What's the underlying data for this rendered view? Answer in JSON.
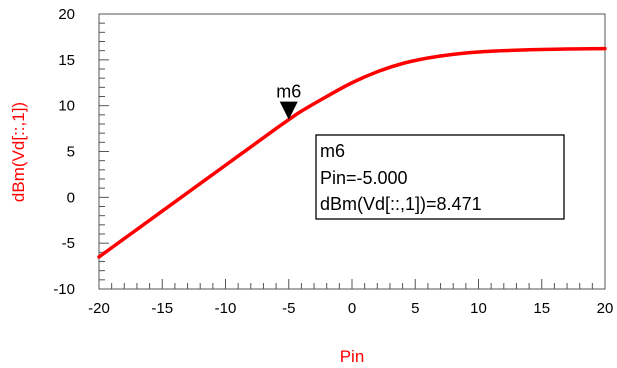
{
  "chart_data": {
    "type": "line",
    "xlabel": "Pin",
    "ylabel": "dBm(Vd[::,1])",
    "xlim": [
      -20,
      20
    ],
    "ylim": [
      -10,
      20
    ],
    "xticks": [
      -20,
      -15,
      -10,
      -5,
      0,
      5,
      10,
      15,
      20
    ],
    "yticks": [
      -10,
      -5,
      0,
      5,
      10,
      15,
      20
    ],
    "xtick_labels": [
      "-20",
      "-15",
      "-10",
      "-5",
      "0",
      "5",
      "10",
      "15",
      "20"
    ],
    "ytick_labels": [
      "-10",
      "-5",
      "0",
      "5",
      "10",
      "15",
      "20"
    ],
    "grid": false,
    "series": [
      {
        "color": "#ff0000",
        "x": [
          -20,
          -18,
          -16,
          -14,
          -12,
          -10,
          -8,
          -6,
          -5,
          -4,
          -2,
          0,
          2,
          4,
          6,
          8,
          10,
          12,
          14,
          16,
          18,
          20
        ],
        "y": [
          -6.5,
          -4.5,
          -2.5,
          -0.5,
          1.5,
          3.5,
          5.5,
          7.5,
          8.471,
          9.4,
          11.0,
          12.5,
          13.7,
          14.6,
          15.2,
          15.6,
          15.85,
          16.0,
          16.1,
          16.15,
          16.2,
          16.22
        ]
      }
    ],
    "marker": {
      "name": "m6",
      "x": -5.0,
      "y": 8.471,
      "readout": {
        "title": "m6",
        "line1": "Pin=-5.000",
        "line2": "dBm(Vd[::,1])=8.471"
      }
    }
  }
}
